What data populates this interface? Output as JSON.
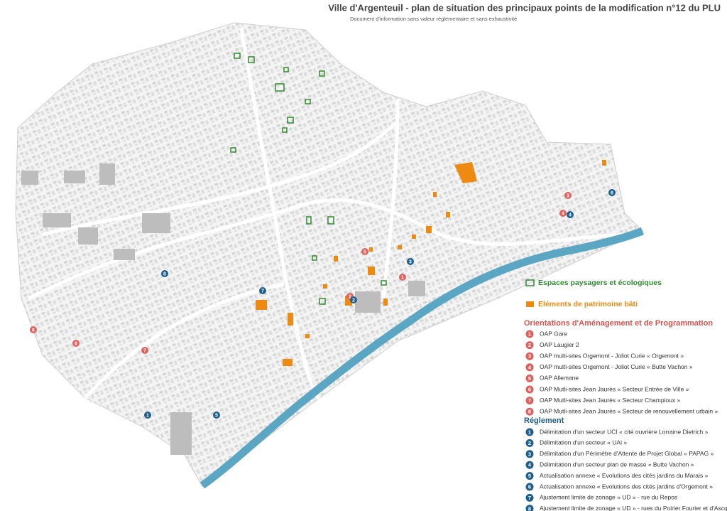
{
  "header": {
    "title": "Ville d'Argenteuil - plan de situation des principaux points de la modification n°12 du PLU",
    "subtitle": "Document d'information sans valeur réglementaire et sans exhaustivité"
  },
  "legend": {
    "layers": [
      {
        "label": "Espaces paysagers et écologiques"
      },
      {
        "label": "Eléments de patrimoine bâti"
      }
    ],
    "oap": {
      "title": "Orientations d'Aménagement et de Programmation",
      "items": [
        {
          "number": 1,
          "label": "OAP Gare"
        },
        {
          "number": 2,
          "label": "OAP Laugier 2"
        },
        {
          "number": 3,
          "label": "OAP multi-sites Orgemont - Joliot Curie « Orgemont »"
        },
        {
          "number": 4,
          "label": "OAP multi-sites Orgemont - Joliot Curie « Butte Vachon »"
        },
        {
          "number": 5,
          "label": "OAP Allemane"
        },
        {
          "number": 6,
          "label": "OAP Mutli-sites Jean Jaurès « Secteur Entrée de Ville »"
        },
        {
          "number": 7,
          "label": "OAP Mutli-sites Jean Jaurès « Secteur Champioux »"
        },
        {
          "number": 8,
          "label": "OAP Mutli-sites Jean Jaurès « Secteur de renouvellement urbain »"
        }
      ]
    },
    "reglement": {
      "title": "Réglement",
      "items": [
        {
          "number": 1,
          "label": "Délimitation d'un secteur UCI « cité ouvrière Lorraine Dietrich »"
        },
        {
          "number": 2,
          "label": "Délimitation d'un secteur « UAi »"
        },
        {
          "number": 3,
          "label": "Délimitation d'un Périmètre d'Attente de Projet Global « PAPAG »"
        },
        {
          "number": 4,
          "label": "Délimitation d'un secteur plan de masse « Butte Vachon »"
        },
        {
          "number": 5,
          "label": "Actualisation annexe « Evolutions des cités jardins du Marais »"
        },
        {
          "number": 6,
          "label": "Actualisation annexe « Evolutions des cités jardins d'Orgemont »"
        },
        {
          "number": 7,
          "label": "Ajustement limite de zonage « UD » - rue du Repos"
        },
        {
          "number": 8,
          "label": "Ajustement limite de zonage « UD » - rues du Poirier Fourier et d'Ascq"
        }
      ]
    }
  },
  "map": {
    "markers": [
      {
        "number": 1,
        "group": "oap"
      },
      {
        "number": 2,
        "group": "oap"
      },
      {
        "number": 3,
        "group": "oap"
      },
      {
        "number": 4,
        "group": "oap"
      },
      {
        "number": 5,
        "group": "oap"
      },
      {
        "number": 6,
        "group": "oap"
      },
      {
        "number": 7,
        "group": "oap"
      },
      {
        "number": 8,
        "group": "oap"
      },
      {
        "number": 1,
        "group": "reglement"
      },
      {
        "number": 2,
        "group": "reglement"
      },
      {
        "number": 3,
        "group": "reglement"
      },
      {
        "number": 4,
        "group": "reglement"
      },
      {
        "number": 5,
        "group": "reglement"
      },
      {
        "number": 6,
        "group": "reglement"
      },
      {
        "number": 7,
        "group": "reglement"
      },
      {
        "number": 8,
        "group": "reglement"
      }
    ]
  }
}
